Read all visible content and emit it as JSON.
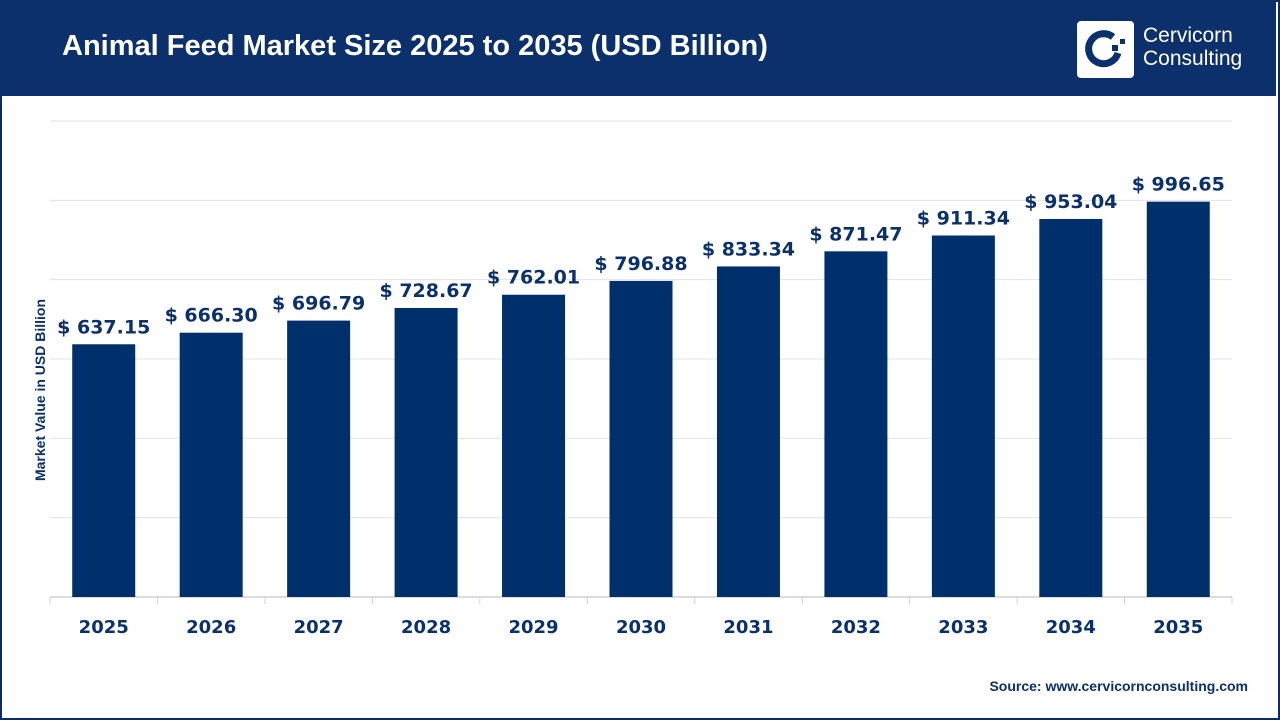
{
  "header": {
    "title": "Animal Feed Market Size 2025 to 2035 (USD Billion)",
    "logo_text_line1": "Cervicorn",
    "logo_text_line2": "Consulting"
  },
  "source": "Source: www.cervicornconsulting.com",
  "colors": {
    "bar": "#00306b",
    "header": "#0b306b",
    "grid": "#e3e3e3"
  },
  "chart_data": {
    "type": "bar",
    "title": "Animal Feed Market Size 2025 to 2035 (USD Billion)",
    "xlabel": "",
    "ylabel": "Market Value in USD Billion",
    "categories": [
      "2025",
      "2026",
      "2027",
      "2028",
      "2029",
      "2030",
      "2031",
      "2032",
      "2033",
      "2034",
      "2035"
    ],
    "values": [
      637.15,
      666.3,
      696.79,
      728.67,
      762.01,
      796.88,
      833.34,
      871.47,
      911.34,
      953.04,
      996.65
    ],
    "labels": [
      "$ 637.15",
      "$ 666.30",
      "$ 696.79",
      "$ 728.67",
      "$ 762.01",
      "$ 796.88",
      "$ 833.34",
      "$ 871.47",
      "$ 911.34",
      "$ 953.04",
      "$ 996.65"
    ],
    "ylim": [
      0,
      1200
    ],
    "grid": true,
    "legend": "none"
  }
}
